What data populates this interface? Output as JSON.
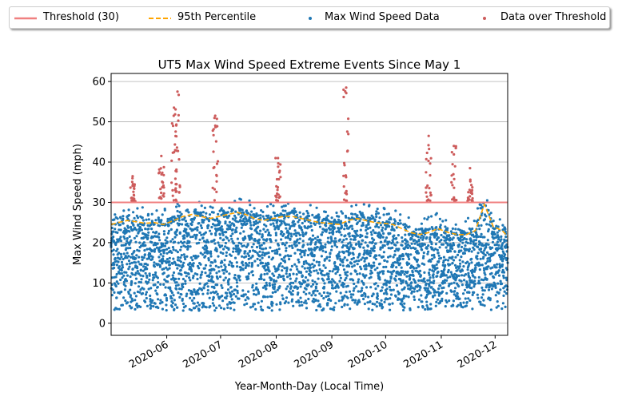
{
  "chart_data": {
    "type": "scatter",
    "title": "UT5 Max Wind Speed Extreme Events Since May 1",
    "xlabel": "Year-Month-Day (Local Time)",
    "ylabel": "Max Wind Speed (mph)",
    "x_range": [
      "2020-05-01",
      "2020-12-08"
    ],
    "ylim": [
      -3,
      62
    ],
    "x_ticks": [
      "2020-06",
      "2020-07",
      "2020-08",
      "2020-09",
      "2020-10",
      "2020-11",
      "2020-12"
    ],
    "x_tick_dates": [
      "2020-06-01",
      "2020-07-01",
      "2020-08-01",
      "2020-09-01",
      "2020-10-01",
      "2020-11-01",
      "2020-12-01"
    ],
    "y_ticks": [
      0,
      10,
      20,
      30,
      40,
      50,
      60
    ],
    "grid": "horizontal",
    "legend_placement": "top",
    "colors": {
      "threshold": "#f08080",
      "percentile": "#ffa500",
      "data": "#1f77b4",
      "over": "#cd5c5c"
    },
    "legend": [
      {
        "label": "Threshold (30)",
        "kind": "line",
        "color": "#f08080"
      },
      {
        "label": "95th Percentile",
        "kind": "dash",
        "color": "#ffa500"
      },
      {
        "label": "Max Wind Speed Data",
        "kind": "dot",
        "color": "#1f77b4"
      },
      {
        "label": "Data over Threshold",
        "kind": "dot",
        "color": "#cd5c5c"
      }
    ],
    "threshold": 30,
    "percentile_95": {
      "x": [
        "2020-05-01",
        "2020-05-05",
        "2020-05-10",
        "2020-05-15",
        "2020-05-20",
        "2020-05-25",
        "2020-05-30",
        "2020-06-05",
        "2020-06-10",
        "2020-06-15",
        "2020-06-20",
        "2020-06-25",
        "2020-06-30",
        "2020-07-05",
        "2020-07-10",
        "2020-07-15",
        "2020-07-20",
        "2020-07-25",
        "2020-07-30",
        "2020-08-05",
        "2020-08-10",
        "2020-08-15",
        "2020-08-20",
        "2020-08-25",
        "2020-08-30",
        "2020-09-05",
        "2020-09-10",
        "2020-09-15",
        "2020-09-20",
        "2020-09-25",
        "2020-09-30",
        "2020-10-05",
        "2020-10-10",
        "2020-10-15",
        "2020-10-20",
        "2020-10-25",
        "2020-10-30",
        "2020-11-05",
        "2020-11-10",
        "2020-11-15",
        "2020-11-20",
        "2020-11-25",
        "2020-11-30",
        "2020-12-05",
        "2020-12-08"
      ],
      "y": [
        24.5,
        25.0,
        25.5,
        25.2,
        24.8,
        25.0,
        24.5,
        25.5,
        26.5,
        27.0,
        26.5,
        26.0,
        26.5,
        27.0,
        27.5,
        27.0,
        26.0,
        25.5,
        26.0,
        26.5,
        26.5,
        26.0,
        25.5,
        25.0,
        24.8,
        24.5,
        25.5,
        26.0,
        25.5,
        25.0,
        24.8,
        24.5,
        23.5,
        22.5,
        22.0,
        22.5,
        23.5,
        22.5,
        22.0,
        22.0,
        23.0,
        29.5,
        24.0,
        23.0,
        21.5
      ]
    },
    "series": [
      {
        "name": "Max Wind Speed Data",
        "typical_range": [
          2,
          30
        ]
      },
      {
        "name": "Data over Threshold",
        "peaks": [
          {
            "x": "2020-05-13",
            "y": 36.5
          },
          {
            "x": "2020-05-29",
            "y": 41.5
          },
          {
            "x": "2020-06-05",
            "y": 53.5
          },
          {
            "x": "2020-06-07",
            "y": 57.5
          },
          {
            "x": "2020-06-28",
            "y": 51.5
          },
          {
            "x": "2020-08-02",
            "y": 41.0
          },
          {
            "x": "2020-09-09",
            "y": 58.5
          },
          {
            "x": "2020-10-25",
            "y": 46.5
          },
          {
            "x": "2020-11-08",
            "y": 44.0
          },
          {
            "x": "2020-11-17",
            "y": 38.5
          }
        ]
      }
    ]
  }
}
